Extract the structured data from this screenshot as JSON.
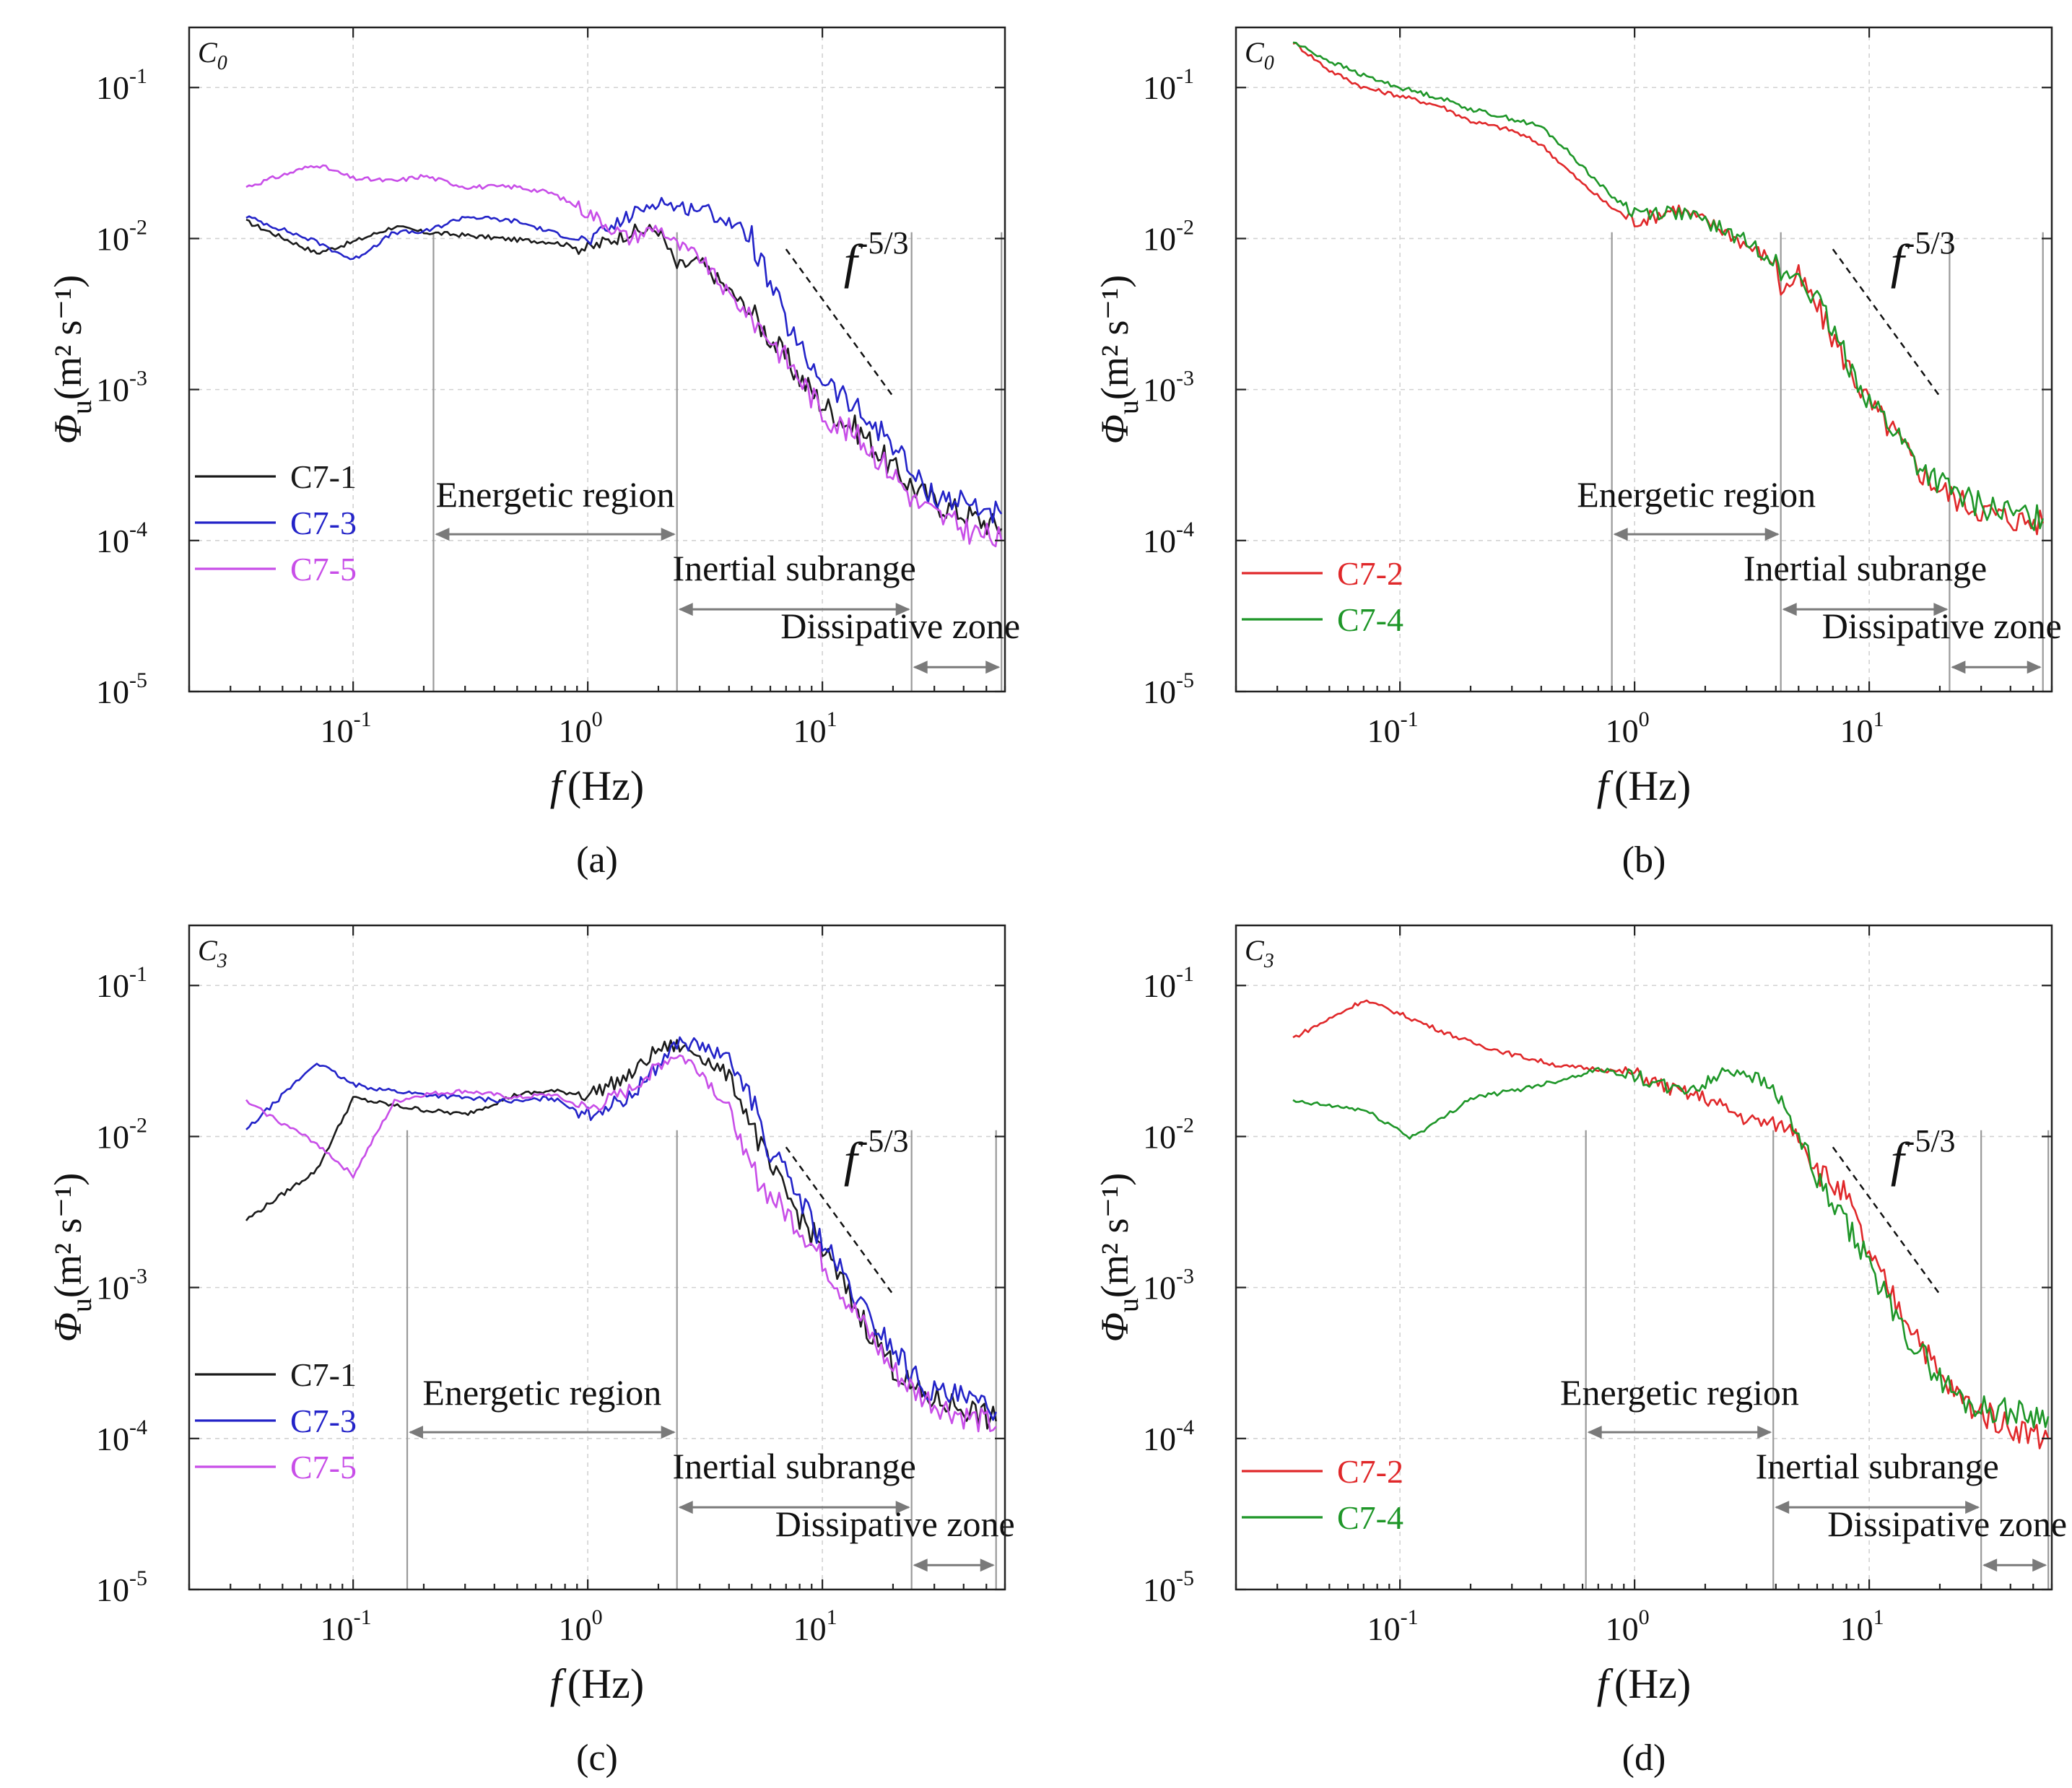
{
  "chart_data": [
    {
      "type": "line",
      "panel_label": "(a)",
      "corner_label": "C0",
      "xlabel_var": "f",
      "xlabel_unit": "(Hz)",
      "ylabel_var": "Φ",
      "ylabel_sub": "u",
      "ylabel_unit": "(m² s⁻¹)",
      "xscale": "log",
      "yscale": "log",
      "xlim": [
        0.02,
        60
      ],
      "ylim": [
        1e-05,
        0.25
      ],
      "xticks": [
        "10^-1",
        "10^0",
        "10^1"
      ],
      "yticks": [
        "10^-5",
        "10^-4",
        "10^-3",
        "10^-2",
        "10^-1"
      ],
      "grid": true,
      "legend_position": "bottom-left",
      "slope_label": "f -5/3",
      "slope_line": {
        "x": [
          7,
          20
        ],
        "y": [
          0.0085,
          0.0009
        ]
      },
      "region_boundaries": [
        0.22,
        2.4,
        24,
        58
      ],
      "regions": [
        {
          "label": "Energetic region",
          "from": 0.22,
          "to": 2.4
        },
        {
          "label": "Inertial subrange",
          "from": 2.4,
          "to": 24
        },
        {
          "label": "Dissipative zone",
          "from": 24,
          "to": 58
        }
      ],
      "series": [
        {
          "name": "C7-1",
          "color": "#1a1a1a",
          "x": [
            0.035,
            0.07,
            0.1,
            0.15,
            0.2,
            0.3,
            0.5,
            0.7,
            1.0,
            1.5,
            2.0,
            2.4,
            3,
            4,
            5,
            6,
            8,
            10,
            15,
            20,
            25,
            30,
            40,
            58
          ],
          "y": [
            0.013,
            0.008,
            0.0095,
            0.012,
            0.011,
            0.0105,
            0.0098,
            0.0095,
            0.0085,
            0.011,
            0.0115,
            0.0065,
            0.007,
            0.0045,
            0.0032,
            0.0022,
            0.0012,
            0.0008,
            0.0005,
            0.0003,
            0.00022,
            0.00018,
            0.00015,
            0.00012
          ]
        },
        {
          "name": "C7-3",
          "color": "#2323c8",
          "x": [
            0.035,
            0.07,
            0.1,
            0.15,
            0.2,
            0.3,
            0.5,
            0.7,
            1.0,
            1.5,
            2.0,
            2.4,
            3,
            4,
            5,
            6,
            8,
            10,
            15,
            20,
            25,
            30,
            40,
            58
          ],
          "y": [
            0.014,
            0.0095,
            0.0072,
            0.011,
            0.011,
            0.014,
            0.013,
            0.011,
            0.0095,
            0.014,
            0.018,
            0.016,
            0.016,
            0.013,
            0.01,
            0.0048,
            0.0018,
            0.0012,
            0.00065,
            0.00045,
            0.00025,
            0.0002,
            0.00018,
            0.00015
          ]
        },
        {
          "name": "C7-5",
          "color": "#c84ee8",
          "x": [
            0.035,
            0.07,
            0.1,
            0.15,
            0.2,
            0.3,
            0.5,
            0.7,
            1.0,
            1.5,
            2.0,
            2.4,
            3,
            4,
            5,
            6,
            8,
            10,
            15,
            20,
            25,
            30,
            40,
            58
          ],
          "y": [
            0.022,
            0.031,
            0.025,
            0.024,
            0.026,
            0.022,
            0.022,
            0.02,
            0.015,
            0.01,
            0.012,
            0.009,
            0.0075,
            0.0042,
            0.003,
            0.0022,
            0.0012,
            0.0007,
            0.00045,
            0.00028,
            0.00018,
            0.00015,
            0.00012,
            0.0001
          ]
        }
      ]
    },
    {
      "type": "line",
      "panel_label": "(b)",
      "corner_label": "C0",
      "xlabel_var": "f",
      "xlabel_unit": "(Hz)",
      "ylabel_var": "Φ",
      "ylabel_sub": "u",
      "ylabel_unit": "(m² s⁻¹)",
      "xscale": "log",
      "yscale": "log",
      "xlim": [
        0.02,
        60
      ],
      "ylim": [
        1e-05,
        0.25
      ],
      "xticks": [
        "10^-1",
        "10^0",
        "10^1"
      ],
      "yticks": [
        "10^-5",
        "10^-4",
        "10^-3",
        "10^-2",
        "10^-1"
      ],
      "grid": true,
      "legend_position": "bottom-left",
      "slope_label": "f -5/3",
      "slope_line": {
        "x": [
          7,
          20
        ],
        "y": [
          0.0085,
          0.0009
        ]
      },
      "region_boundaries": [
        0.8,
        4.2,
        22,
        55
      ],
      "regions": [
        {
          "label": "Energetic region",
          "from": 0.8,
          "to": 4.2
        },
        {
          "label": "Inertial subrange",
          "from": 4.2,
          "to": 22
        },
        {
          "label": "Dissipative zone",
          "from": 22,
          "to": 55
        }
      ],
      "series": [
        {
          "name": "C7-2",
          "color": "#e0282a",
          "x": [
            0.035,
            0.05,
            0.07,
            0.1,
            0.15,
            0.2,
            0.3,
            0.4,
            0.5,
            0.6,
            0.8,
            1.0,
            1.2,
            1.5,
            2.0,
            2.5,
            3,
            4,
            4.2,
            5,
            6,
            8,
            10,
            13,
            16,
            20,
            25,
            30,
            40,
            55
          ],
          "y": [
            0.2,
            0.13,
            0.1,
            0.088,
            0.075,
            0.06,
            0.052,
            0.042,
            0.03,
            0.023,
            0.016,
            0.013,
            0.014,
            0.016,
            0.013,
            0.011,
            0.009,
            0.007,
            0.0045,
            0.0055,
            0.0035,
            0.0015,
            0.0008,
            0.0005,
            0.0003,
            0.00022,
            0.00018,
            0.00016,
            0.00014,
            0.00013
          ]
        },
        {
          "name": "C7-4",
          "color": "#1e9628",
          "x": [
            0.035,
            0.05,
            0.07,
            0.1,
            0.15,
            0.2,
            0.3,
            0.4,
            0.5,
            0.6,
            0.8,
            1.0,
            1.2,
            1.5,
            2.0,
            2.5,
            3,
            4,
            4.2,
            5,
            6,
            8,
            10,
            13,
            16,
            20,
            25,
            30,
            40,
            55
          ],
          "y": [
            0.2,
            0.15,
            0.12,
            0.1,
            0.085,
            0.072,
            0.062,
            0.055,
            0.04,
            0.03,
            0.019,
            0.015,
            0.015,
            0.015,
            0.013,
            0.011,
            0.0095,
            0.0072,
            0.0055,
            0.0058,
            0.0038,
            0.0016,
            0.00085,
            0.00052,
            0.00032,
            0.00024,
            0.00019,
            0.00017,
            0.00015,
            0.00014
          ]
        }
      ]
    },
    {
      "type": "line",
      "panel_label": "(c)",
      "corner_label": "C3",
      "xlabel_var": "f",
      "xlabel_unit": "(Hz)",
      "ylabel_var": "Φ",
      "ylabel_sub": "u",
      "ylabel_unit": "(m² s⁻¹)",
      "xscale": "log",
      "yscale": "log",
      "xlim": [
        0.02,
        60
      ],
      "ylim": [
        1e-05,
        0.25
      ],
      "xticks": [
        "10^-1",
        "10^0",
        "10^1"
      ],
      "yticks": [
        "10^-5",
        "10^-4",
        "10^-3",
        "10^-2",
        "10^-1"
      ],
      "grid": true,
      "legend_position": "bottom-left",
      "slope_label": "f -5/3",
      "slope_line": {
        "x": [
          7,
          20
        ],
        "y": [
          0.0085,
          0.0009
        ]
      },
      "region_boundaries": [
        0.17,
        2.4,
        24,
        55
      ],
      "regions": [
        {
          "label": "Energetic region",
          "from": 0.17,
          "to": 2.4
        },
        {
          "label": "Inertial subrange",
          "from": 2.4,
          "to": 24
        },
        {
          "label": "Dissipative zone",
          "from": 24,
          "to": 55
        }
      ],
      "series": [
        {
          "name": "C7-1",
          "color": "#1a1a1a",
          "x": [
            0.035,
            0.07,
            0.1,
            0.15,
            0.2,
            0.3,
            0.5,
            0.7,
            1.0,
            1.5,
            2.0,
            2.4,
            3,
            4,
            5,
            6,
            8,
            10,
            15,
            20,
            25,
            30,
            40,
            55
          ],
          "y": [
            0.0028,
            0.006,
            0.018,
            0.016,
            0.015,
            0.014,
            0.019,
            0.02,
            0.019,
            0.025,
            0.038,
            0.04,
            0.035,
            0.025,
            0.012,
            0.006,
            0.003,
            0.0018,
            0.0006,
            0.0003,
            0.0002,
            0.00018,
            0.00016,
            0.00013
          ]
        },
        {
          "name": "C7-3",
          "color": "#2323c8",
          "x": [
            0.035,
            0.07,
            0.1,
            0.15,
            0.2,
            0.3,
            0.5,
            0.7,
            1.0,
            1.5,
            2.0,
            2.4,
            3,
            4,
            5,
            6,
            8,
            10,
            15,
            20,
            25,
            30,
            40,
            55
          ],
          "y": [
            0.011,
            0.031,
            0.022,
            0.02,
            0.019,
            0.018,
            0.017,
            0.018,
            0.014,
            0.018,
            0.03,
            0.042,
            0.04,
            0.032,
            0.018,
            0.008,
            0.004,
            0.002,
            0.0007,
            0.0004,
            0.00025,
            0.0002,
            0.00018,
            0.00015
          ]
        },
        {
          "name": "C7-5",
          "color": "#c84ee8",
          "x": [
            0.035,
            0.07,
            0.1,
            0.15,
            0.2,
            0.3,
            0.5,
            0.7,
            1.0,
            1.5,
            2.0,
            2.4,
            3,
            4,
            5,
            6,
            8,
            10,
            15,
            20,
            25,
            30,
            40,
            55
          ],
          "y": [
            0.017,
            0.009,
            0.0055,
            0.017,
            0.019,
            0.02,
            0.018,
            0.019,
            0.015,
            0.02,
            0.03,
            0.035,
            0.028,
            0.015,
            0.006,
            0.004,
            0.0025,
            0.0015,
            0.00055,
            0.00028,
            0.0002,
            0.00017,
            0.00014,
            0.00012
          ]
        }
      ]
    },
    {
      "type": "line",
      "panel_label": "(d)",
      "corner_label": "C3",
      "xlabel_var": "f",
      "xlabel_unit": "(Hz)",
      "ylabel_var": "Φ",
      "ylabel_sub": "u",
      "ylabel_unit": "(m² s⁻¹)",
      "xscale": "log",
      "yscale": "log",
      "xlim": [
        0.02,
        60
      ],
      "ylim": [
        1e-05,
        0.25
      ],
      "xticks": [
        "10^-1",
        "10^0",
        "10^1"
      ],
      "yticks": [
        "10^-5",
        "10^-4",
        "10^-3",
        "10^-2",
        "10^-1"
      ],
      "grid": true,
      "legend_position": "bottom-left",
      "slope_label": "f -5/3",
      "slope_line": {
        "x": [
          7,
          20
        ],
        "y": [
          0.0085,
          0.0009
        ]
      },
      "region_boundaries": [
        0.62,
        3.9,
        30,
        58
      ],
      "regions": [
        {
          "label": "Energetic region",
          "from": 0.62,
          "to": 3.9
        },
        {
          "label": "Inertial subrange",
          "from": 3.9,
          "to": 30
        },
        {
          "label": "Dissipative zone",
          "from": 30,
          "to": 58
        }
      ],
      "series": [
        {
          "name": "C7-2",
          "color": "#e0282a",
          "x": [
            0.035,
            0.05,
            0.07,
            0.1,
            0.15,
            0.2,
            0.3,
            0.5,
            0.7,
            1.0,
            1.5,
            2.0,
            3,
            4,
            5,
            6,
            8,
            10,
            13,
            16,
            20,
            25,
            30,
            40,
            58
          ],
          "y": [
            0.045,
            0.06,
            0.08,
            0.065,
            0.05,
            0.042,
            0.035,
            0.029,
            0.028,
            0.026,
            0.02,
            0.018,
            0.013,
            0.012,
            0.011,
            0.006,
            0.004,
            0.0016,
            0.0008,
            0.0005,
            0.00025,
            0.00018,
            0.00015,
            0.00012,
            0.0001
          ]
        },
        {
          "name": "C7-4",
          "color": "#1e9628",
          "x": [
            0.035,
            0.05,
            0.07,
            0.1,
            0.11,
            0.15,
            0.2,
            0.3,
            0.5,
            0.7,
            1.0,
            1.5,
            2.0,
            2.5,
            3,
            4,
            5,
            6,
            8,
            10,
            13,
            16,
            20,
            25,
            30,
            40,
            58
          ],
          "y": [
            0.017,
            0.016,
            0.015,
            0.011,
            0.0098,
            0.013,
            0.018,
            0.02,
            0.024,
            0.028,
            0.025,
            0.02,
            0.022,
            0.028,
            0.027,
            0.02,
            0.01,
            0.005,
            0.0025,
            0.0015,
            0.0006,
            0.0004,
            0.00025,
            0.00018,
            0.00016,
            0.00015,
            0.00014
          ]
        }
      ]
    }
  ]
}
